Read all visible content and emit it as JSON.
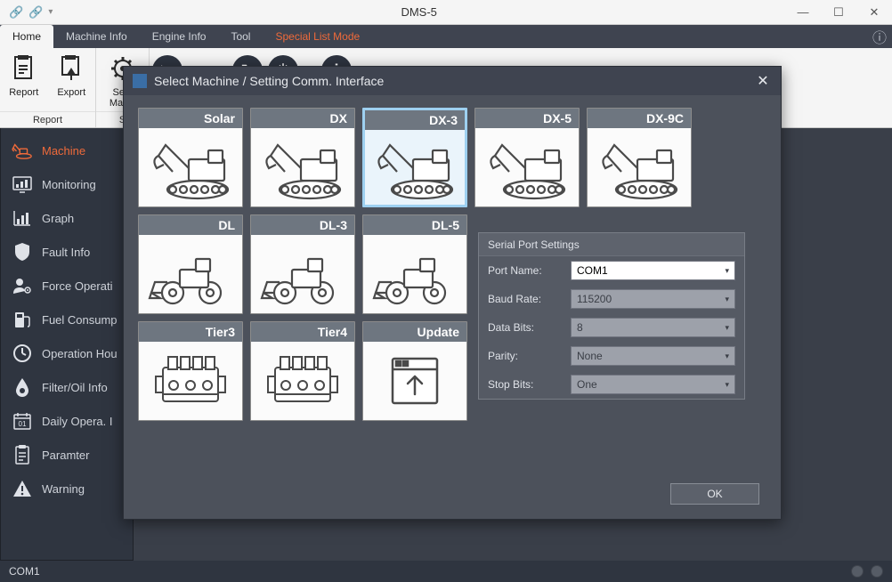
{
  "window": {
    "title": "DMS-5"
  },
  "menu_tabs": {
    "items": [
      "Home",
      "Machine Info",
      "Engine Info",
      "Tool",
      "Special List Mode"
    ],
    "active_index": 0,
    "special_index": 4
  },
  "ribbon": {
    "group1_caption": "Report",
    "group2_caption": "S",
    "buttons": {
      "report": "Report",
      "export": "Export",
      "select_machine_line1": "Sele",
      "select_machine_line2": "Machi"
    }
  },
  "sidebar": {
    "items": [
      {
        "label": "Machine",
        "icon": "excavator"
      },
      {
        "label": "Monitoring",
        "icon": "monitor"
      },
      {
        "label": "Graph",
        "icon": "bars"
      },
      {
        "label": "Fault Info",
        "icon": "shield"
      },
      {
        "label": "Force Operati",
        "icon": "user-gear"
      },
      {
        "label": "Fuel Consump",
        "icon": "fuel"
      },
      {
        "label": "Operation Hou",
        "icon": "clock"
      },
      {
        "label": "Filter/Oil Info",
        "icon": "drop"
      },
      {
        "label": "Daily Opera. I",
        "icon": "calendar"
      },
      {
        "label": "Paramter",
        "icon": "clipboard"
      },
      {
        "label": "Warning",
        "icon": "warn"
      }
    ],
    "active_index": 0
  },
  "modal": {
    "title": "Select Machine / Setting Comm. Interface",
    "row1": [
      "Solar",
      "DX",
      "DX-3",
      "DX-5",
      "DX-9C"
    ],
    "row2": [
      "DL",
      "DL-3",
      "DL-5"
    ],
    "row3": [
      "Tier3",
      "Tier4",
      "Update"
    ],
    "selected": "DX-3",
    "row1_type": "excavator",
    "row2_type": "loader",
    "row3_types": [
      "engine",
      "engine",
      "update"
    ],
    "serial": {
      "header": "Serial Port Settings",
      "fields": [
        {
          "label": "Port Name:",
          "value": "COM1",
          "enabled": true
        },
        {
          "label": "Baud Rate:",
          "value": "115200",
          "enabled": false
        },
        {
          "label": "Data Bits:",
          "value": "8",
          "enabled": false
        },
        {
          "label": "Parity:",
          "value": "None",
          "enabled": false
        },
        {
          "label": "Stop Bits:",
          "value": "One",
          "enabled": false
        }
      ]
    },
    "ok_label": "OK"
  },
  "statusbar": {
    "port": "COM1"
  },
  "colors": {
    "accent": "#ef6a3a",
    "modal_bg": "#4c515b",
    "tile_label_bg": "#6e7680",
    "selected_border": "#9ed0f0"
  }
}
